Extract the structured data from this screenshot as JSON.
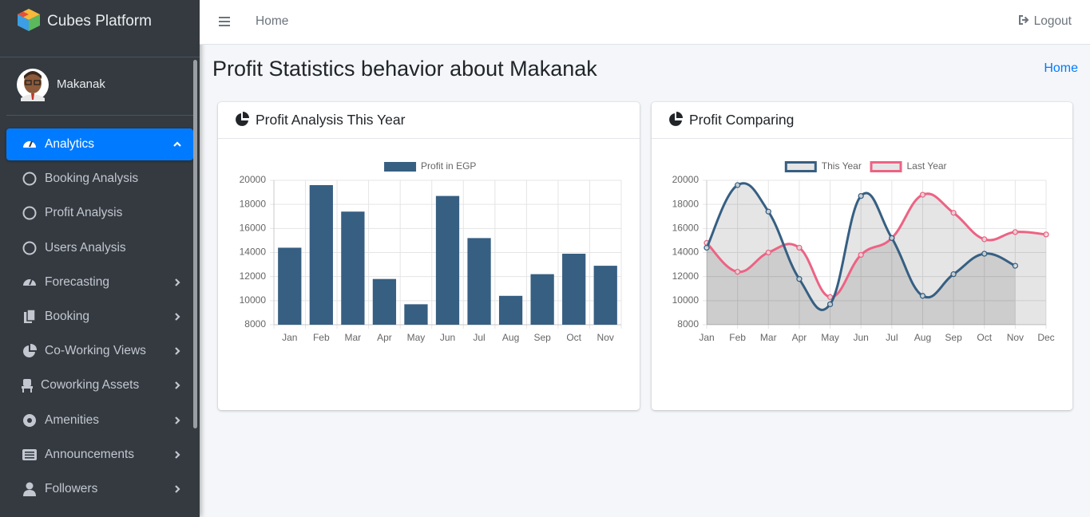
{
  "sidebar": {
    "brand": "Cubes Platform",
    "user": "Makanak",
    "menu": [
      "Analytics",
      "Booking Analysis",
      "Profit Analysis",
      "Users Analysis",
      "Forecasting",
      "Booking",
      "Co-Working Views",
      "Coworking Assets",
      "Amenities",
      "Announcements",
      "Followers"
    ]
  },
  "navbar": {
    "link": "Home",
    "logout": "Logout"
  },
  "page": {
    "title": "Profit Statistics behavior about Makanak",
    "breadcrumb": "Home"
  },
  "chart_data": [
    {
      "type": "bar",
      "title": "Profit Analysis This Year",
      "categories": [
        "Jan",
        "Feb",
        "Mar",
        "Apr",
        "May",
        "Jun",
        "Jul",
        "Aug",
        "Sep",
        "Oct",
        "Nov"
      ],
      "series": [
        {
          "name": "Profit in EGP",
          "color": "#365f82",
          "values": [
            14400,
            19600,
            17400,
            11800,
            9700,
            18700,
            15200,
            10400,
            12200,
            13900,
            12900
          ]
        }
      ],
      "ylim": [
        8000,
        20000
      ],
      "yticks": [
        8000,
        10000,
        12000,
        14000,
        16000,
        18000,
        20000
      ],
      "grid": true,
      "legend": "top"
    },
    {
      "type": "line",
      "title": "Profit Comparing",
      "categories": [
        "Jan",
        "Feb",
        "Mar",
        "Apr",
        "May",
        "Jun",
        "Jul",
        "Aug",
        "Sep",
        "Oct",
        "Nov",
        "Dec"
      ],
      "series": [
        {
          "name": "This Year",
          "color": "#365f82",
          "fill": true,
          "values": [
            14400,
            19600,
            17400,
            11800,
            9700,
            18700,
            15200,
            10400,
            12200,
            13900,
            12900,
            null
          ]
        },
        {
          "name": "Last Year",
          "color": "#ec6384",
          "fill": true,
          "values": [
            14800,
            12400,
            14000,
            14400,
            10300,
            13800,
            15200,
            18800,
            17300,
            15100,
            15700,
            15500
          ]
        }
      ],
      "ylim": [
        8000,
        20000
      ],
      "yticks": [
        8000,
        10000,
        12000,
        14000,
        16000,
        18000,
        20000
      ],
      "grid": true,
      "legend": "top"
    }
  ]
}
